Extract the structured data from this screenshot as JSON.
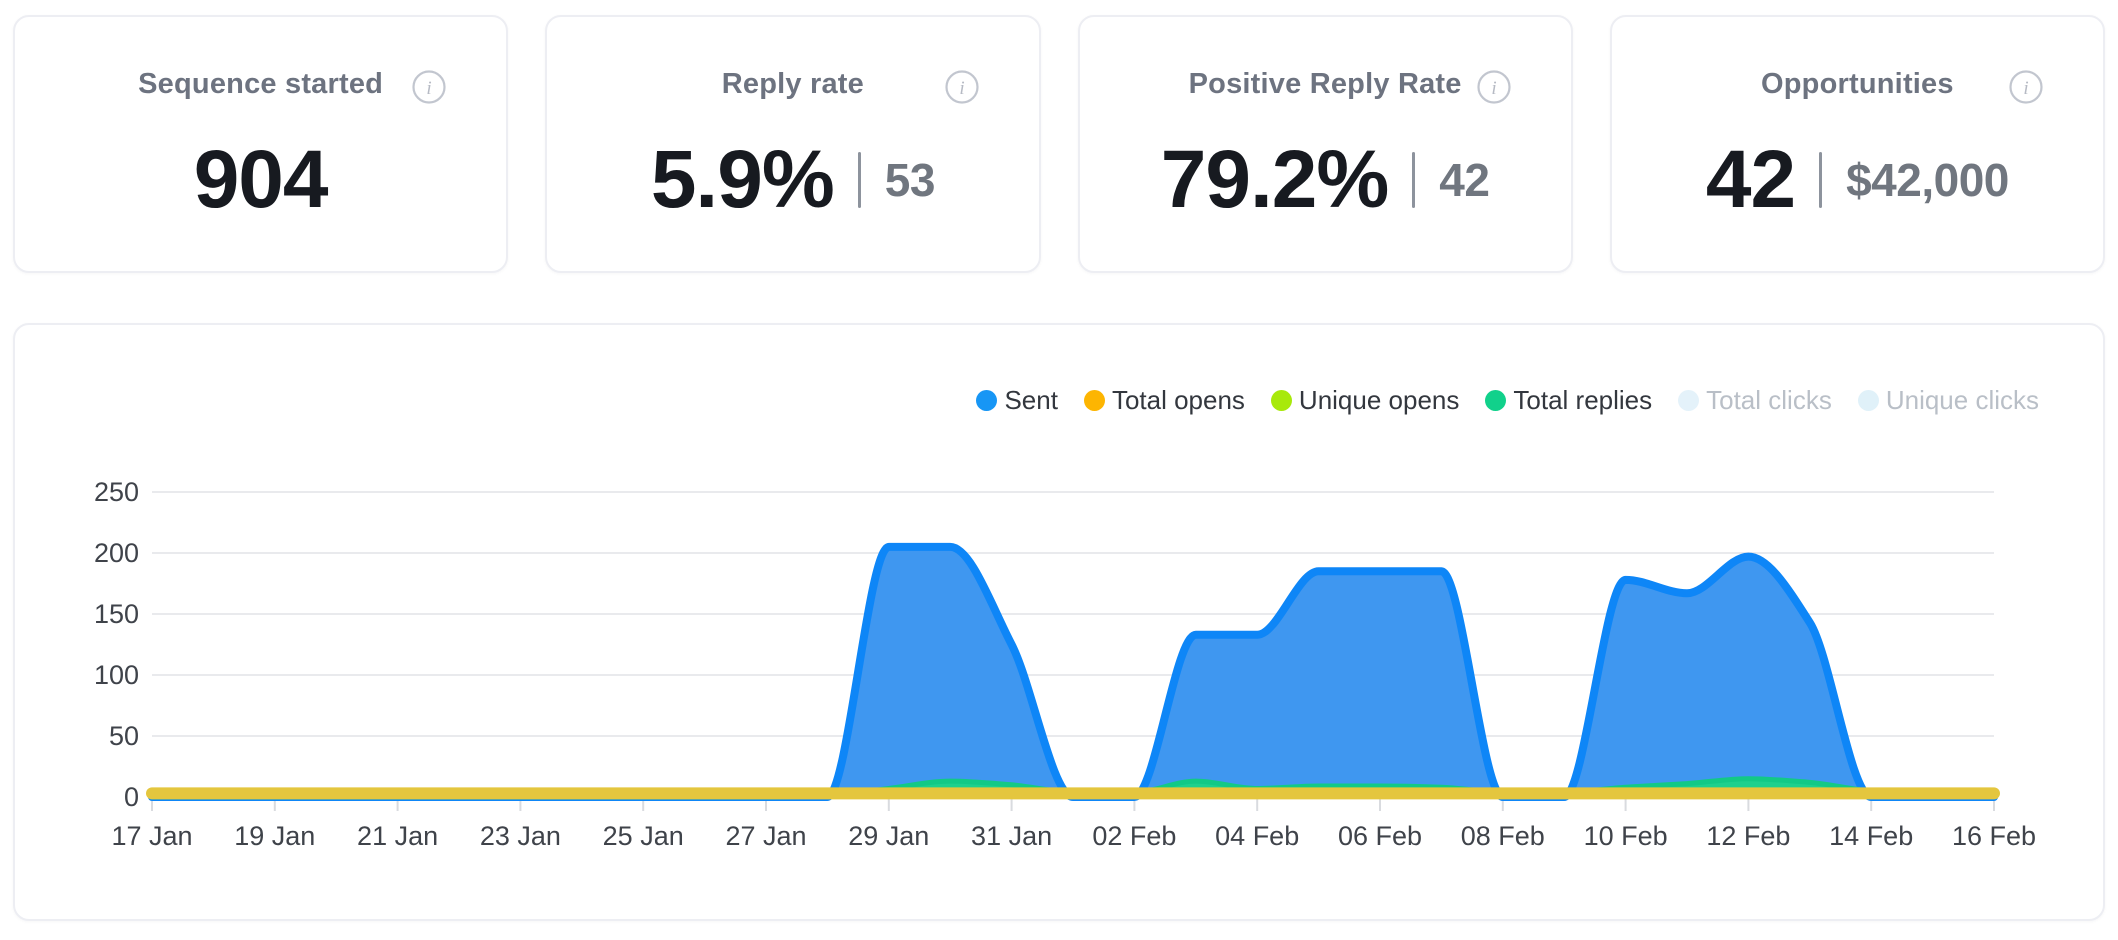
{
  "cards": [
    {
      "title": "Sequence started",
      "value": "904",
      "secondary": null
    },
    {
      "title": "Reply rate",
      "value": "5.9%",
      "secondary": "53"
    },
    {
      "title": "Positive Reply Rate",
      "value": "79.2%",
      "secondary": "42"
    },
    {
      "title": "Opportunities",
      "value": "42",
      "secondary": "$42,000"
    }
  ],
  "info_icon": {
    "glyph": "i"
  },
  "chart_data": {
    "type": "area",
    "title": "",
    "xlabel": "",
    "ylabel": "",
    "ylim": [
      0,
      250
    ],
    "yticks": [
      0,
      50,
      100,
      150,
      200,
      250
    ],
    "x_tick_step": 2,
    "grid": true,
    "legend_position": "top-right",
    "categories": [
      "17 Jan",
      "18 Jan",
      "19 Jan",
      "20 Jan",
      "21 Jan",
      "22 Jan",
      "23 Jan",
      "24 Jan",
      "25 Jan",
      "26 Jan",
      "27 Jan",
      "28 Jan",
      "29 Jan",
      "30 Jan",
      "31 Jan",
      "01 Feb",
      "02 Feb",
      "03 Feb",
      "04 Feb",
      "05 Feb",
      "06 Feb",
      "07 Feb",
      "08 Feb",
      "09 Feb",
      "10 Feb",
      "11 Feb",
      "12 Feb",
      "13 Feb",
      "14 Feb",
      "15 Feb",
      "16 Feb"
    ],
    "legend": [
      {
        "label": "Sent",
        "color": "#1796f5",
        "active": true
      },
      {
        "label": "Total opens",
        "color": "#fdb501",
        "active": true
      },
      {
        "label": "Unique opens",
        "color": "#a8e90b",
        "active": true
      },
      {
        "label": "Total replies",
        "color": "#11d18b",
        "active": true
      },
      {
        "label": "Total clicks",
        "color": "#e4f2fa",
        "active": false
      },
      {
        "label": "Unique clicks",
        "color": "#e0f1f9",
        "active": false
      }
    ],
    "series": [
      {
        "name": "Sent",
        "visible": true,
        "stroke": "#0e86f7",
        "fill": "#3f97f0",
        "stroke_width": 8,
        "values": [
          0,
          0,
          0,
          0,
          0,
          0,
          0,
          0,
          0,
          0,
          0,
          0,
          205,
          205,
          125,
          0,
          0,
          133,
          133,
          185,
          185,
          185,
          0,
          0,
          178,
          167,
          197,
          143,
          0,
          0,
          0
        ]
      },
      {
        "name": "Total replies",
        "visible": true,
        "stroke": "#12c986",
        "fill": "#1ed08d",
        "stroke_width": 5,
        "values": [
          0,
          0,
          0,
          0,
          0,
          0,
          0,
          0,
          0,
          0,
          0,
          1,
          7,
          13,
          10,
          4,
          4,
          13,
          7,
          9,
          9,
          8,
          4,
          4,
          8,
          11,
          15,
          12,
          5,
          3,
          2
        ]
      },
      {
        "name": "Unique opens",
        "visible": true,
        "stroke": "#b5d838",
        "fill": null,
        "stroke_width": 6,
        "values": [
          2,
          2,
          2,
          2,
          2,
          2,
          2,
          2,
          2,
          2,
          2,
          2,
          2,
          2,
          2,
          2,
          2,
          2,
          2,
          2,
          2,
          2,
          2,
          2,
          2,
          2,
          2,
          2,
          2,
          2,
          2
        ]
      },
      {
        "name": "Total opens",
        "visible": true,
        "stroke": "#e4c63e",
        "fill": null,
        "stroke_width": 12,
        "values": [
          3,
          3,
          3,
          3,
          3,
          3,
          3,
          3,
          3,
          3,
          3,
          3,
          3,
          3,
          3,
          3,
          3,
          3,
          3,
          3,
          3,
          3,
          3,
          3,
          3,
          3,
          3,
          3,
          3,
          3,
          3
        ]
      },
      {
        "name": "Total clicks",
        "visible": false,
        "stroke": "#e4f2fa",
        "fill": null,
        "stroke_width": 6,
        "values": []
      },
      {
        "name": "Unique clicks",
        "visible": false,
        "stroke": "#e0f1f9",
        "fill": null,
        "stroke_width": 6,
        "values": []
      }
    ],
    "axis_text_color": "#3f434a",
    "grid_color": "#e9eaed",
    "axis_line_color": "#d9dbdf"
  }
}
